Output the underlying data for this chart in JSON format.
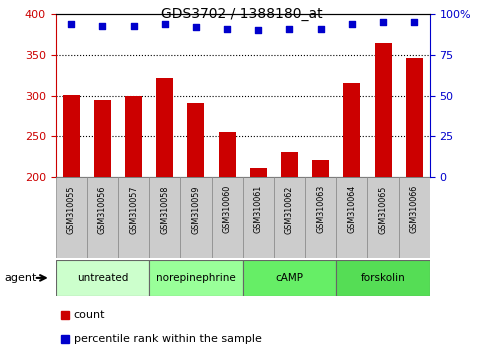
{
  "title": "GDS3702 / 1388180_at",
  "samples": [
    "GSM310055",
    "GSM310056",
    "GSM310057",
    "GSM310058",
    "GSM310059",
    "GSM310060",
    "GSM310061",
    "GSM310062",
    "GSM310063",
    "GSM310064",
    "GSM310065",
    "GSM310066"
  ],
  "bar_values": [
    301,
    294,
    299,
    322,
    291,
    255,
    211,
    231,
    221,
    315,
    364,
    346
  ],
  "dot_values": [
    94,
    93,
    93,
    94,
    92,
    91,
    90,
    91,
    91,
    94,
    95,
    95
  ],
  "bar_color": "#cc0000",
  "dot_color": "#0000cc",
  "ylim_left": [
    200,
    400
  ],
  "ylim_right": [
    0,
    100
  ],
  "yticks_left": [
    200,
    250,
    300,
    350,
    400
  ],
  "yticks_right": [
    0,
    25,
    50,
    75,
    100
  ],
  "right_tick_labels": [
    "0",
    "25",
    "50",
    "75",
    "100%"
  ],
  "agent_groups": [
    {
      "label": "untreated",
      "start": 0,
      "end": 3,
      "color": "#ccffcc"
    },
    {
      "label": "norepinephrine",
      "start": 3,
      "end": 6,
      "color": "#99ff99"
    },
    {
      "label": "cAMP",
      "start": 6,
      "end": 9,
      "color": "#66ee66"
    },
    {
      "label": "forskolin",
      "start": 9,
      "end": 12,
      "color": "#55dd55"
    }
  ],
  "bar_color_legend": "#cc0000",
  "dot_color_legend": "#0000cc",
  "tick_color_left": "#cc0000",
  "tick_color_right": "#0000cc",
  "bar_width": 0.55,
  "sample_box_color": "#cccccc",
  "grid_dotted_color": "#000000"
}
